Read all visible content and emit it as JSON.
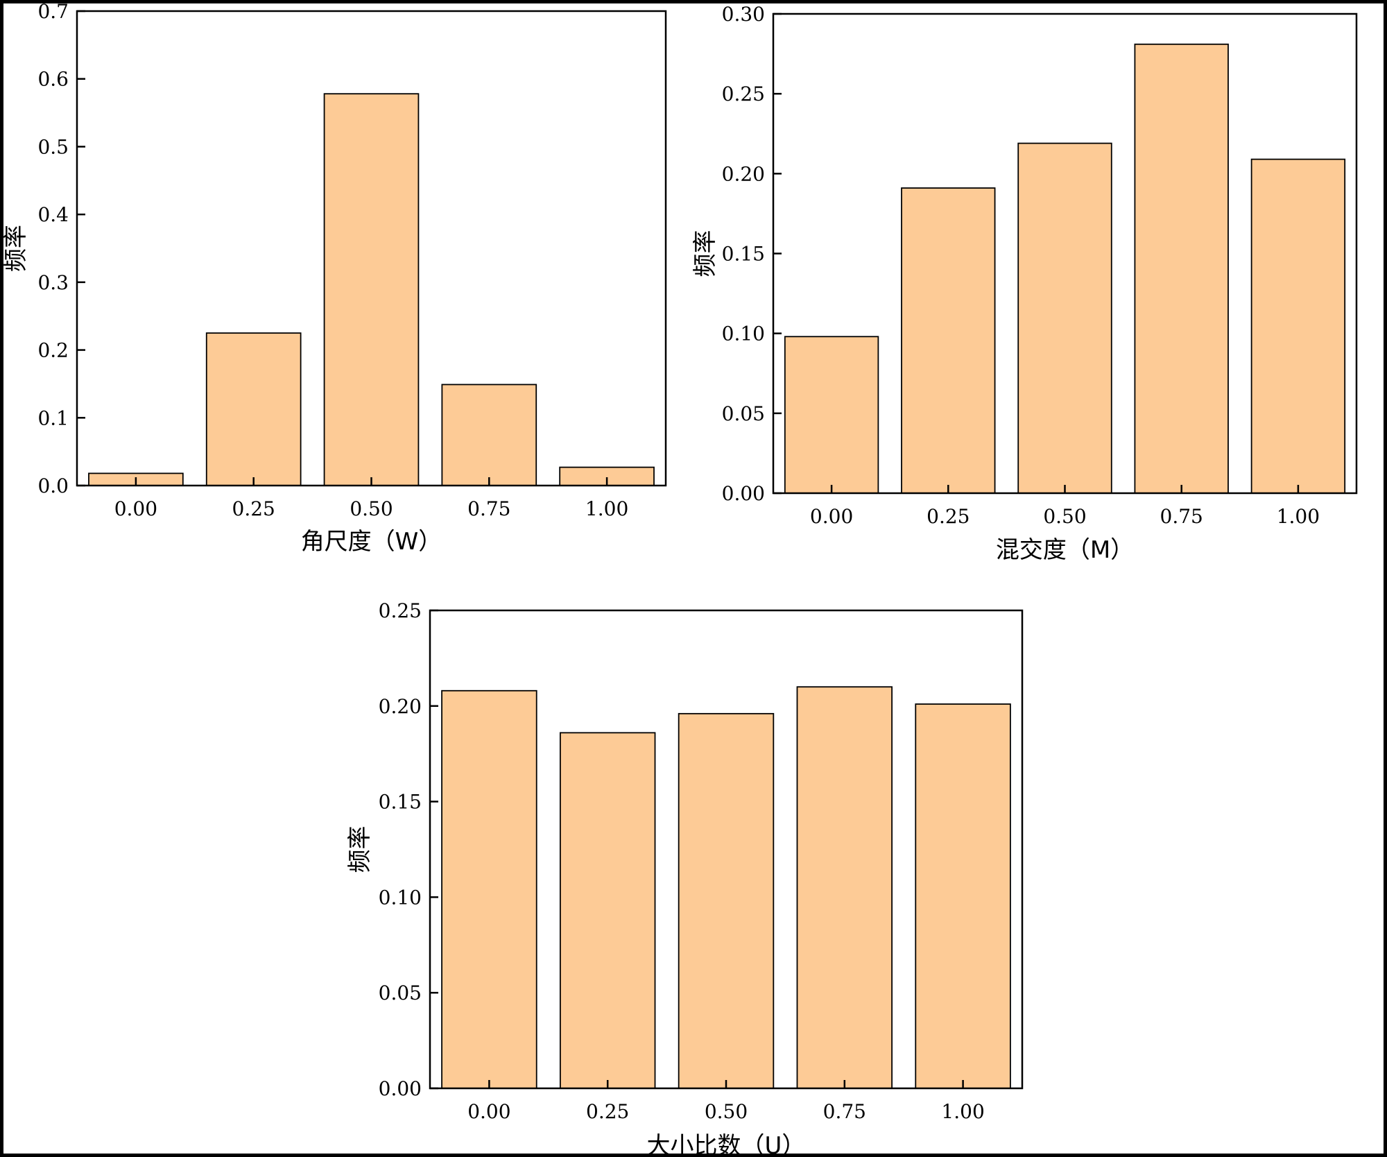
{
  "chart_data": [
    {
      "type": "bar",
      "categories": [
        "0.00",
        "0.25",
        "0.50",
        "0.75",
        "1.00"
      ],
      "values": [
        0.018,
        0.225,
        0.578,
        0.149,
        0.027
      ],
      "title": "",
      "xlabel": "角尺度（W）",
      "ylabel": "频率",
      "ylim": [
        0,
        0.7
      ],
      "yticks": [
        "0.0",
        "0.1",
        "0.2",
        "0.3",
        "0.4",
        "0.5",
        "0.6",
        "0.7"
      ],
      "bar_color": "#FDCB96",
      "grid": false
    },
    {
      "type": "bar",
      "categories": [
        "0.00",
        "0.25",
        "0.50",
        "0.75",
        "1.00"
      ],
      "values": [
        0.098,
        0.191,
        0.219,
        0.281,
        0.209
      ],
      "title": "",
      "xlabel": "混交度（M）",
      "ylabel": "频率",
      "ylim": [
        0,
        0.3
      ],
      "yticks": [
        "0.00",
        "0.05",
        "0.10",
        "0.15",
        "0.20",
        "0.25",
        "0.30"
      ],
      "bar_color": "#FDCB96",
      "grid": false
    },
    {
      "type": "bar",
      "categories": [
        "0.00",
        "0.25",
        "0.50",
        "0.75",
        "1.00"
      ],
      "values": [
        0.208,
        0.186,
        0.196,
        0.21,
        0.201
      ],
      "title": "",
      "xlabel": "大小比数（U）",
      "ylabel": "频率",
      "ylim": [
        0,
        0.25
      ],
      "yticks": [
        "0.00",
        "0.05",
        "0.10",
        "0.15",
        "0.20",
        "0.25"
      ],
      "bar_color": "#FDCB96",
      "grid": false
    }
  ]
}
